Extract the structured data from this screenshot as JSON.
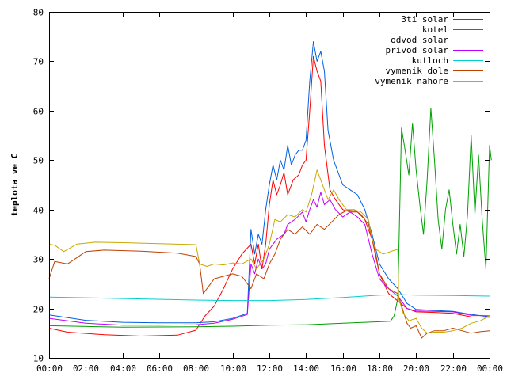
{
  "chart_data": {
    "type": "line",
    "title": "",
    "xlabel": "",
    "ylabel": "teplota ve C",
    "x_unit": "hour of day",
    "xlim": [
      0,
      24
    ],
    "ylim": [
      10,
      80
    ],
    "x_ticks": [
      0,
      2,
      4,
      6,
      8,
      10,
      12,
      14,
      16,
      18,
      20,
      22,
      24
    ],
    "x_tick_labels": [
      "00:00",
      "02:00",
      "04:00",
      "06:00",
      "08:00",
      "10:00",
      "12:00",
      "14:00",
      "16:00",
      "18:00",
      "20:00",
      "22:00",
      "00:00"
    ],
    "y_ticks": [
      10,
      20,
      30,
      40,
      50,
      60,
      70,
      80
    ],
    "y_tick_labels": [
      "10",
      "20",
      "30",
      "40",
      "50",
      "60",
      "70",
      "80"
    ],
    "grid": false,
    "legend_position": "top-right",
    "series": [
      {
        "name": "3ti solar",
        "color": "#ff0000",
        "points": [
          [
            0,
            16
          ],
          [
            1,
            15.2
          ],
          [
            3,
            14.7
          ],
          [
            5,
            14.4
          ],
          [
            7,
            14.6
          ],
          [
            8,
            15.6
          ],
          [
            8.5,
            18.5
          ],
          [
            9,
            20.5
          ],
          [
            9.5,
            24
          ],
          [
            10,
            28
          ],
          [
            10.5,
            31
          ],
          [
            11,
            33
          ],
          [
            11.2,
            29
          ],
          [
            11.4,
            33
          ],
          [
            11.6,
            28
          ],
          [
            11.8,
            33
          ],
          [
            12,
            41
          ],
          [
            12.2,
            46
          ],
          [
            12.4,
            43
          ],
          [
            12.6,
            45
          ],
          [
            12.8,
            47.5
          ],
          [
            13,
            43
          ],
          [
            13.3,
            46
          ],
          [
            13.6,
            47
          ],
          [
            13.8,
            49
          ],
          [
            14,
            50
          ],
          [
            14.2,
            60
          ],
          [
            14.4,
            71
          ],
          [
            14.6,
            68
          ],
          [
            14.8,
            66
          ],
          [
            15,
            53
          ],
          [
            15.3,
            44
          ],
          [
            15.6,
            42
          ],
          [
            16,
            40
          ],
          [
            16.4,
            39.5
          ],
          [
            16.8,
            39.5
          ],
          [
            17.2,
            38
          ],
          [
            17.6,
            34
          ],
          [
            18,
            27
          ],
          [
            18.5,
            23
          ],
          [
            19,
            21.5
          ],
          [
            19.5,
            20
          ],
          [
            20,
            19.3
          ],
          [
            21,
            19.2
          ],
          [
            22,
            19
          ],
          [
            23,
            18.3
          ],
          [
            24,
            18.2
          ]
        ]
      },
      {
        "name": "kotel",
        "color": "#00a000",
        "points": [
          [
            0,
            16.5
          ],
          [
            4,
            16.2
          ],
          [
            8,
            16.3
          ],
          [
            10,
            16.4
          ],
          [
            12,
            16.6
          ],
          [
            14,
            16.7
          ],
          [
            16,
            17
          ],
          [
            18,
            17.3
          ],
          [
            18.6,
            17.4
          ],
          [
            18.8,
            18.5
          ],
          [
            19,
            22
          ],
          [
            19.2,
            56.5
          ],
          [
            19.4,
            52
          ],
          [
            19.6,
            47
          ],
          [
            19.8,
            57.5
          ],
          [
            20,
            48
          ],
          [
            20.2,
            41
          ],
          [
            20.4,
            35
          ],
          [
            20.6,
            46
          ],
          [
            20.8,
            60.5
          ],
          [
            21,
            50
          ],
          [
            21.2,
            38
          ],
          [
            21.4,
            32
          ],
          [
            21.6,
            40
          ],
          [
            21.8,
            44
          ],
          [
            22,
            37
          ],
          [
            22.2,
            31
          ],
          [
            22.4,
            37
          ],
          [
            22.6,
            30.5
          ],
          [
            22.8,
            39
          ],
          [
            23,
            55
          ],
          [
            23.2,
            39
          ],
          [
            23.4,
            51
          ],
          [
            23.6,
            38
          ],
          [
            23.8,
            28
          ],
          [
            24,
            53
          ],
          [
            24.1,
            50
          ]
        ]
      },
      {
        "name": "odvod solar",
        "color": "#0060e0",
        "points": [
          [
            0,
            18.7
          ],
          [
            2,
            17.6
          ],
          [
            4,
            17.2
          ],
          [
            6,
            17.1
          ],
          [
            8,
            17.1
          ],
          [
            9,
            17.3
          ],
          [
            10,
            18
          ],
          [
            10.8,
            19
          ],
          [
            11,
            36
          ],
          [
            11.2,
            31
          ],
          [
            11.4,
            35
          ],
          [
            11.6,
            33
          ],
          [
            11.8,
            40
          ],
          [
            12,
            45
          ],
          [
            12.2,
            49
          ],
          [
            12.4,
            46
          ],
          [
            12.6,
            50
          ],
          [
            12.8,
            48
          ],
          [
            13,
            53
          ],
          [
            13.2,
            49
          ],
          [
            13.4,
            51
          ],
          [
            13.6,
            52
          ],
          [
            13.8,
            52
          ],
          [
            14,
            54
          ],
          [
            14.2,
            66
          ],
          [
            14.4,
            74
          ],
          [
            14.6,
            70
          ],
          [
            14.8,
            72
          ],
          [
            15,
            68
          ],
          [
            15.2,
            56
          ],
          [
            15.5,
            50
          ],
          [
            15.8,
            47
          ],
          [
            16,
            45
          ],
          [
            16.4,
            44
          ],
          [
            16.8,
            43
          ],
          [
            17.2,
            40
          ],
          [
            17.6,
            35
          ],
          [
            18,
            29
          ],
          [
            18.5,
            26
          ],
          [
            19,
            24
          ],
          [
            19.5,
            21
          ],
          [
            20,
            19.8
          ],
          [
            21,
            19.6
          ],
          [
            22,
            19.4
          ],
          [
            23,
            18.8
          ],
          [
            24,
            18.3
          ]
        ]
      },
      {
        "name": "privod solar",
        "color": "#c000ff",
        "points": [
          [
            0,
            18
          ],
          [
            2,
            17
          ],
          [
            4,
            16.6
          ],
          [
            6,
            16.6
          ],
          [
            8,
            16.7
          ],
          [
            9,
            17
          ],
          [
            10,
            17.8
          ],
          [
            10.8,
            18.8
          ],
          [
            11,
            29
          ],
          [
            11.2,
            27
          ],
          [
            11.4,
            30
          ],
          [
            11.6,
            28
          ],
          [
            11.8,
            29
          ],
          [
            12,
            32
          ],
          [
            12.4,
            34
          ],
          [
            12.8,
            35
          ],
          [
            13,
            37
          ],
          [
            13.4,
            38
          ],
          [
            13.8,
            39.5
          ],
          [
            14,
            37.5
          ],
          [
            14.2,
            40
          ],
          [
            14.4,
            42
          ],
          [
            14.6,
            40.5
          ],
          [
            14.8,
            43.5
          ],
          [
            15,
            41
          ],
          [
            15.3,
            42
          ],
          [
            15.6,
            40
          ],
          [
            16,
            38.5
          ],
          [
            16.4,
            39.5
          ],
          [
            16.8,
            38.5
          ],
          [
            17.2,
            37
          ],
          [
            17.6,
            31
          ],
          [
            18,
            26
          ],
          [
            18.5,
            24
          ],
          [
            19,
            22.5
          ],
          [
            19.5,
            20
          ],
          [
            20,
            19.5
          ],
          [
            21,
            19.4
          ],
          [
            22,
            19.3
          ],
          [
            23,
            18.6
          ],
          [
            24,
            18.5
          ]
        ]
      },
      {
        "name": "kutloch",
        "color": "#00d0d0",
        "points": [
          [
            0,
            22.3
          ],
          [
            4,
            22
          ],
          [
            8,
            21.7
          ],
          [
            10,
            21.6
          ],
          [
            12,
            21.6
          ],
          [
            14,
            21.8
          ],
          [
            16,
            22.2
          ],
          [
            18,
            22.7
          ],
          [
            19,
            22.8
          ],
          [
            20,
            22.7
          ],
          [
            22,
            22.6
          ],
          [
            24,
            22.5
          ]
        ]
      },
      {
        "name": "vymenik dole",
        "color": "#c04000",
        "points": [
          [
            0,
            26
          ],
          [
            0.3,
            29.5
          ],
          [
            1,
            29
          ],
          [
            2,
            31.5
          ],
          [
            3,
            31.8
          ],
          [
            5,
            31.6
          ],
          [
            7,
            31.2
          ],
          [
            8,
            30.5
          ],
          [
            8.2,
            29
          ],
          [
            8.4,
            23
          ],
          [
            9,
            26
          ],
          [
            10,
            27
          ],
          [
            10.5,
            26.5
          ],
          [
            11,
            24
          ],
          [
            11.3,
            27
          ],
          [
            11.7,
            26
          ],
          [
            12,
            29
          ],
          [
            12.3,
            31
          ],
          [
            12.6,
            34
          ],
          [
            13,
            36
          ],
          [
            13.4,
            35
          ],
          [
            13.8,
            36.5
          ],
          [
            14.2,
            35
          ],
          [
            14.6,
            37
          ],
          [
            15,
            36
          ],
          [
            15.4,
            37.5
          ],
          [
            15.8,
            39
          ],
          [
            16.2,
            39.8
          ],
          [
            16.6,
            40
          ],
          [
            17,
            39
          ],
          [
            17.4,
            37
          ],
          [
            17.8,
            31
          ],
          [
            18,
            27
          ],
          [
            18.5,
            24
          ],
          [
            19,
            23
          ],
          [
            19.5,
            17
          ],
          [
            19.7,
            16
          ],
          [
            20,
            16.5
          ],
          [
            20.3,
            14
          ],
          [
            20.6,
            15
          ],
          [
            21,
            15.5
          ],
          [
            21.5,
            15.5
          ],
          [
            22,
            16
          ],
          [
            22.5,
            15.5
          ],
          [
            23,
            15
          ],
          [
            23.5,
            15.3
          ],
          [
            24,
            15.5
          ]
        ]
      },
      {
        "name": "vymenik nahore",
        "color": "#c8a800",
        "points": [
          [
            0,
            33
          ],
          [
            0.3,
            32.8
          ],
          [
            0.8,
            31.5
          ],
          [
            1.5,
            33
          ],
          [
            2.5,
            33.4
          ],
          [
            4,
            33.3
          ],
          [
            6,
            33.1
          ],
          [
            8,
            32.9
          ],
          [
            8.2,
            29
          ],
          [
            8.6,
            28.5
          ],
          [
            9,
            29
          ],
          [
            9.5,
            28.8
          ],
          [
            10,
            29.2
          ],
          [
            10.5,
            29
          ],
          [
            11,
            30
          ],
          [
            11.3,
            28
          ],
          [
            11.7,
            30
          ],
          [
            12,
            33
          ],
          [
            12.3,
            38
          ],
          [
            12.6,
            37.5
          ],
          [
            13,
            39
          ],
          [
            13.4,
            38.5
          ],
          [
            13.8,
            40
          ],
          [
            14,
            39.5
          ],
          [
            14.3,
            43
          ],
          [
            14.6,
            48
          ],
          [
            14.9,
            45
          ],
          [
            15.2,
            42
          ],
          [
            15.5,
            44
          ],
          [
            15.8,
            42
          ],
          [
            16.2,
            40
          ],
          [
            16.6,
            40
          ],
          [
            17,
            39.5
          ],
          [
            17.4,
            38
          ],
          [
            17.6,
            34
          ],
          [
            17.8,
            32
          ],
          [
            18.2,
            31
          ],
          [
            19,
            32
          ],
          [
            19.05,
            22
          ],
          [
            19.3,
            19
          ],
          [
            19.6,
            17.5
          ],
          [
            20,
            18
          ],
          [
            20.3,
            16
          ],
          [
            20.6,
            15
          ],
          [
            21,
            15.2
          ],
          [
            21.5,
            15.2
          ],
          [
            22,
            15.5
          ],
          [
            22.5,
            16
          ],
          [
            23,
            17
          ],
          [
            23.5,
            17.5
          ],
          [
            24,
            18.5
          ]
        ]
      }
    ]
  }
}
